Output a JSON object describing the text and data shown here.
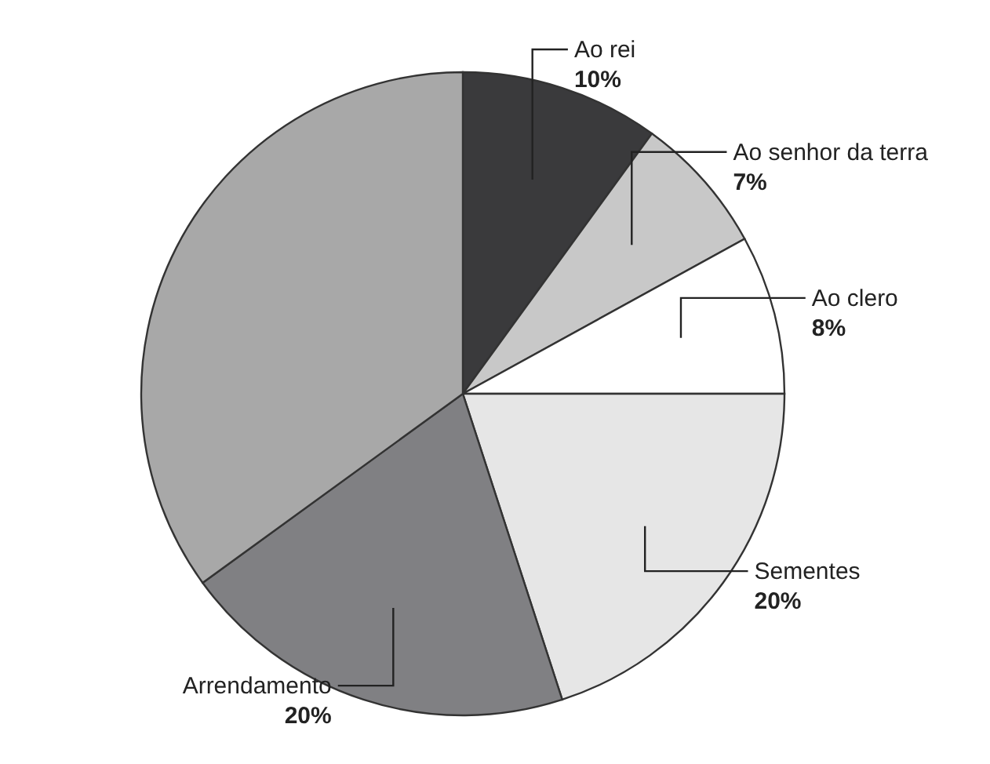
{
  "chart_data": {
    "type": "pie",
    "categories": [
      "Ao rei",
      "Ao senhor da terra",
      "Ao clero",
      "Sementes",
      "Arrendamento",
      null
    ],
    "values": [
      10,
      7,
      8,
      20,
      20,
      35
    ],
    "value_labels": [
      "10%",
      "7%",
      "8%",
      "20%",
      "20%",
      null
    ],
    "colors": [
      "#3a3a3c",
      "#c8c8c8",
      "#ffffff",
      "#e6e6e6",
      "#808083",
      "#a8a8a8"
    ],
    "legend": false
  }
}
